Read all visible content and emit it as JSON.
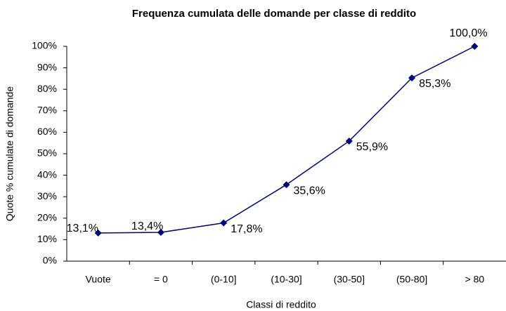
{
  "chart_data": {
    "type": "line",
    "title": "Frequenza cumulata delle domande per classe di reddito",
    "x_label": "Classi di reddito",
    "y_label": "Quote % cumulate di domande",
    "categories": [
      "Vuote",
      "= 0",
      "(0-10]",
      "(10-30]",
      "(30-50]",
      "(50-80]",
      "> 80"
    ],
    "values": [
      13.1,
      13.4,
      17.8,
      35.6,
      55.9,
      85.3,
      100.0
    ],
    "value_labels": [
      "13,1%",
      "13,4%",
      "17,8%",
      "35,6%",
      "55,9%",
      "85,3%",
      "100,0%"
    ],
    "color": "#000080",
    "ylim": [
      0,
      100
    ],
    "yticks": [
      {
        "value": 0,
        "label": "0%"
      },
      {
        "value": 10,
        "label": "10%"
      },
      {
        "value": 20,
        "label": "20%"
      },
      {
        "value": 30,
        "label": "30%"
      },
      {
        "value": 40,
        "label": "40%"
      },
      {
        "value": 50,
        "label": "50%"
      },
      {
        "value": 60,
        "label": "60%"
      },
      {
        "value": 70,
        "label": "70%"
      },
      {
        "value": 80,
        "label": "80%"
      },
      {
        "value": 90,
        "label": "90%"
      },
      {
        "value": 100,
        "label": "100%"
      }
    ],
    "grid": false
  }
}
